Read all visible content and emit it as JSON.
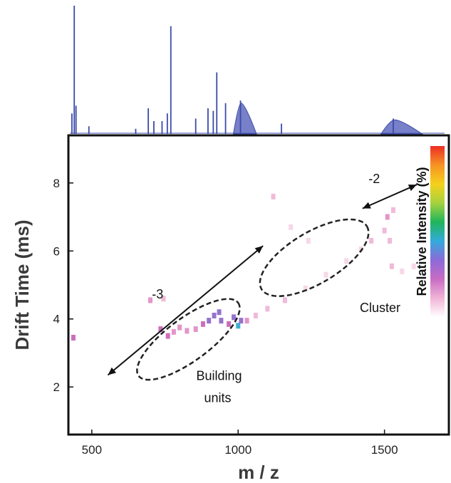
{
  "chart_data": {
    "type": "heatmap",
    "xlabel": "m / z",
    "ylabel": "Drift Time (ms)",
    "xlim": [
      420,
      1720
    ],
    "ylim": [
      0.6,
      9.4
    ],
    "x_ticks": [
      "500",
      "1000",
      "1500"
    ],
    "x_tick_values": [
      500,
      1000,
      1500
    ],
    "y_ticks": [
      "2",
      "4",
      "6",
      "8"
    ],
    "y_tick_values": [
      2,
      4,
      6,
      8
    ],
    "colorbar_label": "Relative Intensity (%)",
    "colorbar_colors": [
      "#ffffff",
      "#f0b4d6",
      "#c86cc4",
      "#8c6ad8",
      "#34aadc",
      "#1fb55a",
      "#a6d23e",
      "#f4d11c",
      "#f79324",
      "#ee2d24"
    ],
    "mass_spectrum": {
      "description": "projected 1D mass spectrum above the drift-time map",
      "peaks": [
        {
          "mz": 432,
          "height": 0.16
        },
        {
          "mz": 440,
          "height": 1.0
        },
        {
          "mz": 446,
          "height": 0.22
        },
        {
          "mz": 490,
          "height": 0.06
        },
        {
          "mz": 650,
          "height": 0.04
        },
        {
          "mz": 693,
          "height": 0.2
        },
        {
          "mz": 712,
          "height": 0.1
        },
        {
          "mz": 740,
          "height": 0.1
        },
        {
          "mz": 758,
          "height": 0.16
        },
        {
          "mz": 770,
          "height": 0.84
        },
        {
          "mz": 855,
          "height": 0.12
        },
        {
          "mz": 897,
          "height": 0.2
        },
        {
          "mz": 915,
          "height": 0.18
        },
        {
          "mz": 927,
          "height": 0.48
        },
        {
          "mz": 957,
          "height": 0.24
        },
        {
          "mz": 1008,
          "height": 0.26
        },
        {
          "mz": 1148,
          "height": 0.08
        },
        {
          "mz": 1530,
          "height": 0.12
        }
      ],
      "humps": [
        {
          "mz": 1010,
          "height": 0.24,
          "width": 9
        },
        {
          "mz": 1535,
          "height": 0.11,
          "width": 16
        }
      ]
    },
    "spots": [
      {
        "mz": 437,
        "dt": 3.45,
        "level": 0.4
      },
      {
        "mz": 700,
        "dt": 4.55,
        "level": 0.25
      },
      {
        "mz": 745,
        "dt": 4.6,
        "level": 0.2
      },
      {
        "mz": 735,
        "dt": 3.7,
        "level": 0.35
      },
      {
        "mz": 760,
        "dt": 3.5,
        "level": 0.4
      },
      {
        "mz": 780,
        "dt": 3.62,
        "level": 0.3
      },
      {
        "mz": 800,
        "dt": 3.75,
        "level": 0.25
      },
      {
        "mz": 825,
        "dt": 3.65,
        "level": 0.3
      },
      {
        "mz": 855,
        "dt": 3.7,
        "level": 0.3
      },
      {
        "mz": 880,
        "dt": 3.85,
        "level": 0.35
      },
      {
        "mz": 900,
        "dt": 3.95,
        "level": 0.45
      },
      {
        "mz": 918,
        "dt": 4.1,
        "level": 0.5
      },
      {
        "mz": 935,
        "dt": 4.2,
        "level": 0.5
      },
      {
        "mz": 942,
        "dt": 3.95,
        "level": 0.45
      },
      {
        "mz": 968,
        "dt": 3.85,
        "level": 0.4
      },
      {
        "mz": 985,
        "dt": 4.05,
        "level": 0.5
      },
      {
        "mz": 1000,
        "dt": 3.8,
        "level": 0.6
      },
      {
        "mz": 1010,
        "dt": 3.95,
        "level": 0.5
      },
      {
        "mz": 1030,
        "dt": 3.95,
        "level": 0.3
      },
      {
        "mz": 1060,
        "dt": 4.1,
        "level": 0.2
      },
      {
        "mz": 1100,
        "dt": 4.3,
        "level": 0.15
      },
      {
        "mz": 1160,
        "dt": 4.55,
        "level": 0.15
      },
      {
        "mz": 1230,
        "dt": 4.9,
        "level": 0.12
      },
      {
        "mz": 1300,
        "dt": 5.3,
        "level": 0.12
      },
      {
        "mz": 1370,
        "dt": 5.7,
        "level": 0.12
      },
      {
        "mz": 1420,
        "dt": 6.05,
        "level": 0.12
      },
      {
        "mz": 1455,
        "dt": 6.3,
        "level": 0.15
      },
      {
        "mz": 1500,
        "dt": 6.6,
        "level": 0.2
      },
      {
        "mz": 1510,
        "dt": 7.0,
        "level": 0.3
      },
      {
        "mz": 1518,
        "dt": 6.3,
        "level": 0.2
      },
      {
        "mz": 1525,
        "dt": 5.55,
        "level": 0.15
      },
      {
        "mz": 1530,
        "dt": 7.2,
        "level": 0.2
      },
      {
        "mz": 1560,
        "dt": 5.4,
        "level": 0.12
      },
      {
        "mz": 1600,
        "dt": 5.55,
        "level": 0.1
      },
      {
        "mz": 1120,
        "dt": 7.6,
        "level": 0.15
      },
      {
        "mz": 1180,
        "dt": 6.7,
        "level": 0.1
      },
      {
        "mz": 1240,
        "dt": 6.3,
        "level": 0.1
      }
    ],
    "annotations": [
      {
        "text": "-3",
        "mz": 725,
        "dt": 4.6
      },
      {
        "text": "Building",
        "mz": 935,
        "dt": 2.2
      },
      {
        "text": "units",
        "mz": 930,
        "dt": 1.55
      },
      {
        "text": "Cluster",
        "mz": 1485,
        "dt": 4.2
      },
      {
        "text": "-2",
        "mz": 1465,
        "dt": 8.0
      }
    ],
    "ellipses": [
      {
        "label": "Building units",
        "center_mz": 830,
        "center_dt": 3.4,
        "major_mz": 340,
        "major_dt": 2.15,
        "minor_half": 30
      },
      {
        "label": "Cluster",
        "center_mz": 1260,
        "center_dt": 5.8,
        "major_mz": 360,
        "major_dt": 1.85,
        "minor_half": 36
      }
    ],
    "arrows": [
      {
        "label": "-3",
        "from": {
          "mz": 555,
          "dt": 2.35
        },
        "to": {
          "mz": 1085,
          "dt": 6.15
        }
      },
      {
        "label": "-2",
        "from": {
          "mz": 1425,
          "dt": 7.25
        },
        "to": {
          "mz": 1610,
          "dt": 7.95
        }
      }
    ]
  }
}
